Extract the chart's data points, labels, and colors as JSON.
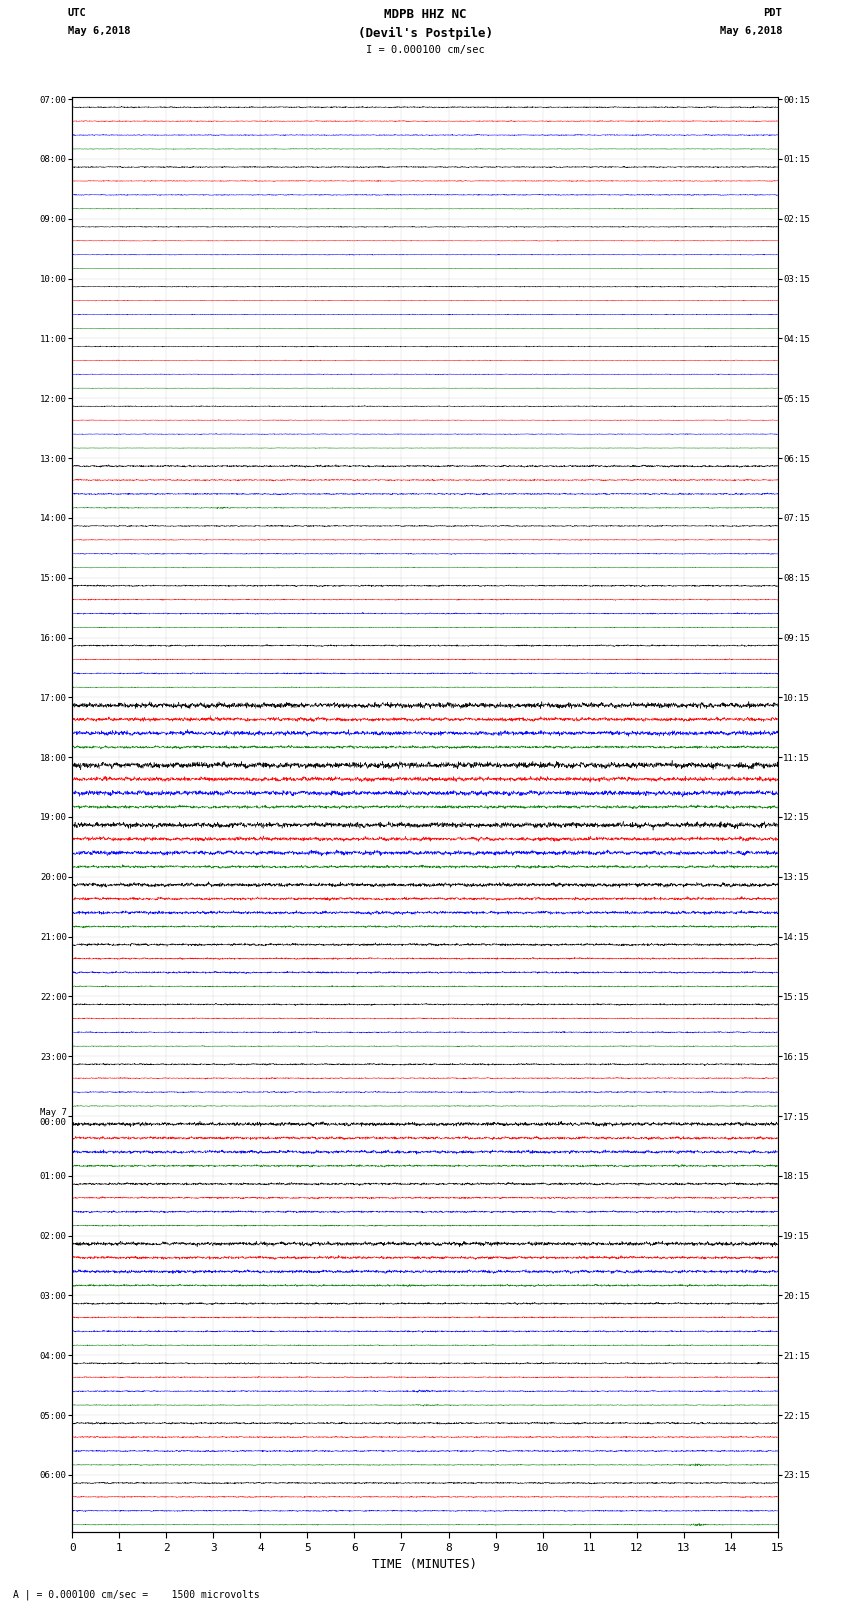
{
  "title_line1": "MDPB HHZ NC",
  "title_line2": "(Devil's Postpile)",
  "title_line3": "I = 0.000100 cm/sec",
  "left_label1": "UTC",
  "left_label2": "May 6,2018",
  "right_label1": "PDT",
  "right_label2": "May 6,2018",
  "bottom_label": "A | = 0.000100 cm/sec =    1500 microvolts",
  "xlabel": "TIME (MINUTES)",
  "utc_times": [
    "07:00",
    "08:00",
    "09:00",
    "10:00",
    "11:00",
    "12:00",
    "13:00",
    "14:00",
    "15:00",
    "16:00",
    "17:00",
    "18:00",
    "19:00",
    "20:00",
    "21:00",
    "22:00",
    "23:00",
    "May 7\n00:00",
    "01:00",
    "02:00",
    "03:00",
    "04:00",
    "05:00",
    "06:00"
  ],
  "pdt_times": [
    "00:15",
    "01:15",
    "02:15",
    "03:15",
    "04:15",
    "05:15",
    "06:15",
    "07:15",
    "08:15",
    "09:15",
    "10:15",
    "11:15",
    "12:15",
    "13:15",
    "14:15",
    "15:15",
    "16:15",
    "17:15",
    "18:15",
    "19:15",
    "20:15",
    "21:15",
    "22:15",
    "23:15"
  ],
  "n_rows": 24,
  "n_traces_per_row": 4,
  "colors": [
    "black",
    "red",
    "blue",
    "green"
  ],
  "fig_width": 8.5,
  "fig_height": 16.13,
  "dpi": 100,
  "bg_color": "white",
  "x_min": 0,
  "x_max": 15,
  "x_ticks": [
    0,
    1,
    2,
    3,
    4,
    5,
    6,
    7,
    8,
    9,
    10,
    11,
    12,
    13,
    14,
    15
  ],
  "row_noise": [
    0.008,
    0.008,
    0.006,
    0.006,
    0.006,
    0.006,
    0.012,
    0.008,
    0.01,
    0.01,
    0.035,
    0.04,
    0.035,
    0.025,
    0.015,
    0.01,
    0.01,
    0.025,
    0.015,
    0.025,
    0.012,
    0.01,
    0.012,
    0.01
  ],
  "trace_noise_scale": [
    1.0,
    0.7,
    0.8,
    0.5
  ],
  "events": [
    {
      "row": 0,
      "trace": 0,
      "t": 7.4,
      "amp": 0.08,
      "dur": 0.15
    },
    {
      "row": 1,
      "trace": 1,
      "t": 6.5,
      "amp": 0.12,
      "dur": 0.1
    },
    {
      "row": 1,
      "trace": 2,
      "t": 6.5,
      "amp": 0.1,
      "dur": 0.1
    },
    {
      "row": 6,
      "trace": 3,
      "t": 3.2,
      "amp": 0.15,
      "dur": 0.3
    },
    {
      "row": 9,
      "trace": 2,
      "t": 8.5,
      "amp": 0.06,
      "dur": 0.2
    },
    {
      "row": 10,
      "trace": 0,
      "t": 1.5,
      "amp": 0.12,
      "dur": 0.4
    },
    {
      "row": 10,
      "trace": 1,
      "t": 1.5,
      "amp": 0.1,
      "dur": 0.4
    },
    {
      "row": 10,
      "trace": 2,
      "t": 3.5,
      "amp": 0.14,
      "dur": 0.6
    },
    {
      "row": 10,
      "trace": 3,
      "t": 3.5,
      "amp": 0.08,
      "dur": 0.4
    },
    {
      "row": 11,
      "trace": 0,
      "t": 2.2,
      "amp": 0.15,
      "dur": 0.5
    },
    {
      "row": 11,
      "trace": 1,
      "t": 2.2,
      "amp": 0.12,
      "dur": 0.4
    },
    {
      "row": 11,
      "trace": 2,
      "t": 8.0,
      "amp": 0.08,
      "dur": 0.3
    },
    {
      "row": 12,
      "trace": 0,
      "t": 1.5,
      "amp": 0.12,
      "dur": 0.4
    },
    {
      "row": 12,
      "trace": 1,
      "t": 4.0,
      "amp": 0.1,
      "dur": 0.5
    },
    {
      "row": 12,
      "trace": 2,
      "t": 4.0,
      "amp": 0.09,
      "dur": 0.5
    },
    {
      "row": 13,
      "trace": 0,
      "t": 3.0,
      "amp": 0.09,
      "dur": 0.4
    },
    {
      "row": 13,
      "trace": 1,
      "t": 5.5,
      "amp": 0.1,
      "dur": 0.5
    },
    {
      "row": 14,
      "trace": 1,
      "t": 0.5,
      "amp": 0.08,
      "dur": 0.3
    },
    {
      "row": 16,
      "trace": 0,
      "t": 4.2,
      "amp": 0.07,
      "dur": 0.3
    },
    {
      "row": 16,
      "trace": 1,
      "t": 4.2,
      "amp": 0.12,
      "dur": 0.3
    },
    {
      "row": 17,
      "trace": 2,
      "t": 4.5,
      "amp": 0.07,
      "dur": 0.4
    },
    {
      "row": 17,
      "trace": 3,
      "t": 6.5,
      "amp": 0.08,
      "dur": 0.4
    },
    {
      "row": 18,
      "trace": 3,
      "t": 5.5,
      "amp": 0.06,
      "dur": 0.5
    },
    {
      "row": 18,
      "trace": 3,
      "t": 6.5,
      "amp": 0.06,
      "dur": 0.5
    },
    {
      "row": 19,
      "trace": 0,
      "t": 12.5,
      "amp": 0.08,
      "dur": 0.3
    },
    {
      "row": 21,
      "trace": 2,
      "t": 7.5,
      "amp": 0.18,
      "dur": 0.6
    },
    {
      "row": 21,
      "trace": 3,
      "t": 7.5,
      "amp": 0.12,
      "dur": 0.5
    },
    {
      "row": 22,
      "trace": 0,
      "t": 0.5,
      "amp": 0.1,
      "dur": 0.3
    },
    {
      "row": 22,
      "trace": 1,
      "t": 0.5,
      "amp": 0.08,
      "dur": 0.3
    },
    {
      "row": 22,
      "trace": 3,
      "t": 13.3,
      "amp": 0.2,
      "dur": 0.4
    },
    {
      "row": 23,
      "trace": 3,
      "t": 13.3,
      "amp": 0.18,
      "dur": 0.4
    },
    {
      "row": 23,
      "trace": 2,
      "t": 5.5,
      "amp": 0.1,
      "dur": 0.4
    }
  ]
}
